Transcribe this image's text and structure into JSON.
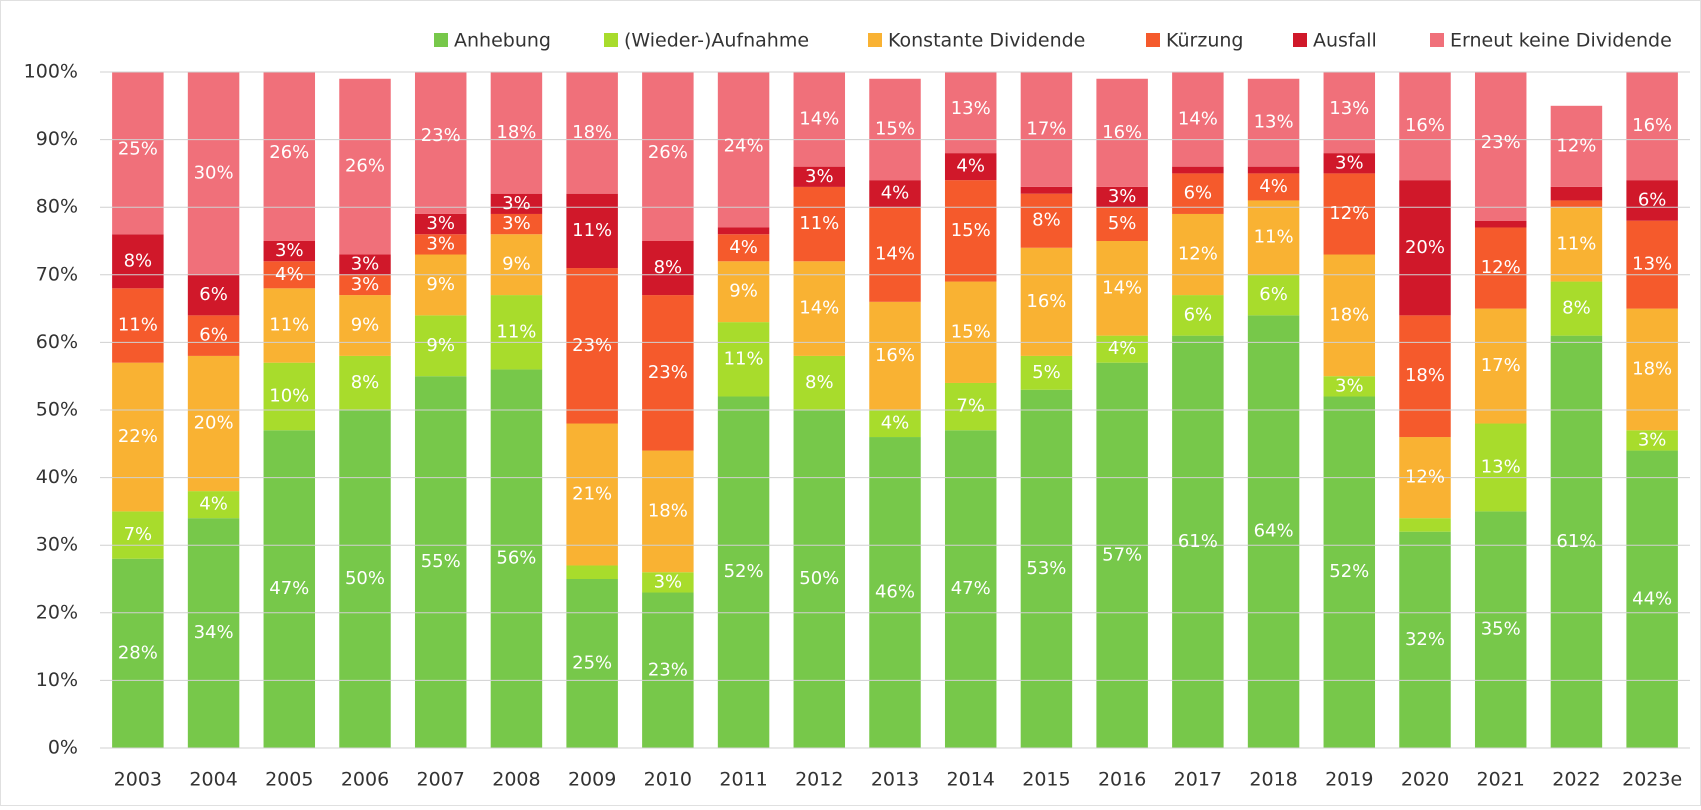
{
  "chart_data": {
    "type": "stacked_bar",
    "categories": [
      "2003",
      "2004",
      "2005",
      "2006",
      "2007",
      "2008",
      "2009",
      "2010",
      "2011",
      "2012",
      "2013",
      "2014",
      "2015",
      "2016",
      "2017",
      "2018",
      "2019",
      "2020",
      "2021",
      "2022",
      "2023e"
    ],
    "series": [
      {
        "name": "Anhebung",
        "color": "#77c84a",
        "values": [
          28,
          34,
          47,
          50,
          55,
          56,
          25,
          23,
          52,
          50,
          46,
          47,
          53,
          57,
          61,
          64,
          52,
          32,
          35,
          61,
          44
        ],
        "value_labels": [
          "28%",
          "34%",
          "47%",
          "50%",
          "55%",
          "56%",
          "25%",
          "23%",
          "52%",
          "50%",
          "46%",
          "47%",
          "53%",
          "57%",
          "61%",
          "64%",
          "52%",
          "32%",
          "35%",
          "61%",
          "44%"
        ]
      },
      {
        "name": "(Wieder-)Aufnahme",
        "color": "#a8dc2c",
        "values": [
          7,
          4,
          10,
          8,
          9,
          11,
          2,
          3,
          11,
          8,
          4,
          7,
          5,
          4,
          6,
          6,
          3,
          2,
          13,
          8,
          3
        ],
        "value_labels": [
          "7%",
          "4%",
          "10%",
          "8%",
          "9%",
          "11%",
          null,
          "3%",
          "11%",
          "8%",
          "4%",
          "7%",
          "5%",
          "4%",
          "6%",
          "6%",
          "3%",
          null,
          "13%",
          "8%",
          "3%"
        ]
      },
      {
        "name": "Konstante Dividende",
        "color": "#f9b233",
        "values": [
          22,
          20,
          11,
          9,
          9,
          9,
          21,
          18,
          9,
          14,
          16,
          15,
          16,
          14,
          12,
          11,
          18,
          12,
          17,
          11,
          18
        ],
        "value_labels": [
          "22%",
          "20%",
          "11%",
          "9%",
          "9%",
          "9%",
          "21%",
          "18%",
          "9%",
          "14%",
          "16%",
          "15%",
          "16%",
          "14%",
          "12%",
          "11%",
          "18%",
          "12%",
          "17%",
          "11%",
          "18%"
        ]
      },
      {
        "name": "Kürzung",
        "color": "#f55a2c",
        "values": [
          11,
          6,
          4,
          3,
          3,
          3,
          23,
          23,
          4,
          11,
          14,
          15,
          8,
          5,
          6,
          4,
          12,
          18,
          12,
          1,
          13
        ],
        "value_labels": [
          "11%",
          "6%",
          "4%",
          "3%",
          "3%",
          "3%",
          "23%",
          "23%",
          "4%",
          "11%",
          "14%",
          "15%",
          "8%",
          "5%",
          "6%",
          "4%",
          "12%",
          "18%",
          "12%",
          null,
          "13%"
        ]
      },
      {
        "name": "Ausfall",
        "color": "#d0182a",
        "values": [
          8,
          6,
          3,
          3,
          3,
          3,
          11,
          8,
          1,
          3,
          4,
          4,
          1,
          3,
          1,
          1,
          3,
          20,
          1,
          2,
          6
        ],
        "value_labels": [
          "8%",
          "6%",
          "3%",
          "3%",
          "3%",
          "3%",
          "11%",
          "8%",
          null,
          "3%",
          "4%",
          "4%",
          null,
          "3%",
          null,
          null,
          "3%",
          "20%",
          null,
          null,
          "6%"
        ]
      },
      {
        "name": "Erneut keine Dividende",
        "color": "#f0707a",
        "values": [
          25,
          30,
          26,
          26,
          23,
          18,
          18,
          26,
          24,
          14,
          15,
          13,
          17,
          16,
          14,
          13,
          13,
          16,
          23,
          12,
          16
        ],
        "value_labels": [
          "25%",
          "30%",
          "26%",
          "26%",
          "23%",
          "18%",
          "18%",
          "26%",
          "24%",
          "14%",
          "15%",
          "13%",
          "17%",
          "16%",
          "14%",
          "13%",
          "13%",
          "16%",
          "23%",
          "12%",
          "16%"
        ]
      }
    ],
    "ylim": [
      0,
      100
    ],
    "yticks": [
      {
        "value": 0,
        "label": "0%"
      },
      {
        "value": 10,
        "label": "10%"
      },
      {
        "value": 20,
        "label": "20%"
      },
      {
        "value": 30,
        "label": "30%"
      },
      {
        "value": 40,
        "label": "40%"
      },
      {
        "value": 50,
        "label": "50%"
      },
      {
        "value": 60,
        "label": "60%"
      },
      {
        "value": 70,
        "label": "70%"
      },
      {
        "value": 80,
        "label": "80%"
      },
      {
        "value": 90,
        "label": "90%"
      },
      {
        "value": 100,
        "label": "100%"
      }
    ],
    "grid": true,
    "legend": "top"
  }
}
